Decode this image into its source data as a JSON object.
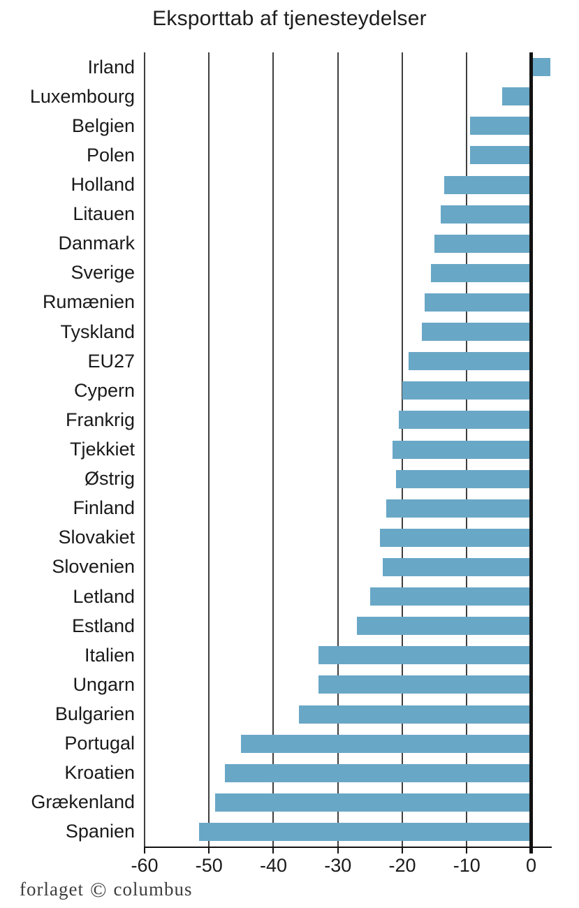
{
  "chart_data": {
    "type": "bar",
    "orientation": "horizontal",
    "title": "Eksporttab af tjenesteydelser",
    "categories": [
      "Irland",
      "Luxembourg",
      "Belgien",
      "Polen",
      "Holland",
      "Litauen",
      "Danmark",
      "Sverige",
      "Rumænien",
      "Tyskland",
      "EU27",
      "Cypern",
      "Frankrig",
      "Tjekkiet",
      "Østrig",
      "Finland",
      "Slovakiet",
      "Slovenien",
      "Letland",
      "Estland",
      "Italien",
      "Ungarn",
      "Bulgarien",
      "Portugal",
      "Kroatien",
      "Grækenland",
      "Spanien"
    ],
    "values": [
      3,
      -4.5,
      -9.5,
      -9.5,
      -13.5,
      -14,
      -15,
      -15.5,
      -16.5,
      -17,
      -19,
      -20,
      -20.5,
      -21.5,
      -21,
      -22.5,
      -23.5,
      -23,
      -25,
      -27,
      -33,
      -33,
      -36,
      -45,
      -47.5,
      -49,
      -51.5
    ],
    "xticks": [
      -60,
      -50,
      -40,
      -30,
      -20,
      -10,
      0
    ],
    "xtick_labels": [
      "-60",
      "-50",
      "-40",
      "-30",
      "-20",
      "-10",
      "0"
    ],
    "xlim": [
      -60,
      3.2
    ],
    "xlabel": "",
    "ylabel": "",
    "grid": true,
    "legend_position": "none",
    "bar_color": "#69a7c6",
    "zero_line_color": "#121212",
    "gridline_color": "#3f3f3f"
  },
  "footer": {
    "publisher_word_left": "forlaget",
    "publisher_symbol": "©",
    "publisher_word_right": "columbus",
    "symbol_color": "#d9472b"
  }
}
